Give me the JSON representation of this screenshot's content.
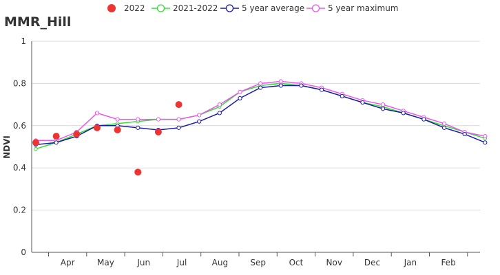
{
  "chart_data": {
    "type": "line",
    "title": "MMR_Hill",
    "ylabel": "NDVI",
    "xlabel": "",
    "ylim": [
      0,
      1
    ],
    "yticks": [
      "0",
      "0.2",
      "0.4",
      "0.6",
      "0.8",
      "1"
    ],
    "month_labels": [
      "Apr",
      "May",
      "Jun",
      "Jul",
      "Aug",
      "Sep",
      "Oct",
      "Nov",
      "Dec",
      "Jan",
      "Feb"
    ],
    "grid": "horizontal",
    "legend_position": "top",
    "series": [
      {
        "name": "2022",
        "style": "dots",
        "color": "#ee3333",
        "values": [
          0.52,
          0.55,
          0.56,
          0.59,
          0.58,
          0.38,
          0.57,
          0.7
        ]
      },
      {
        "name": "2021-2022",
        "style": "line",
        "color": "#33dd33",
        "values": [
          0.49,
          0.52,
          0.56,
          0.6,
          0.61,
          0.62,
          0.63,
          0.63,
          0.65,
          0.69,
          0.76,
          0.79,
          0.8,
          0.79,
          0.77,
          0.74,
          0.71,
          0.69,
          0.66,
          0.63,
          0.6,
          0.57,
          0.54
        ]
      },
      {
        "name": "5 year average",
        "style": "line",
        "color": "#1a1aaa",
        "values": [
          0.51,
          0.52,
          0.55,
          0.6,
          0.6,
          0.59,
          0.58,
          0.59,
          0.62,
          0.66,
          0.73,
          0.78,
          0.79,
          0.79,
          0.77,
          0.74,
          0.71,
          0.68,
          0.66,
          0.63,
          0.59,
          0.56,
          0.52
        ]
      },
      {
        "name": "5 year maximum",
        "style": "line",
        "color": "#ee55ee",
        "values": [
          0.53,
          0.53,
          0.57,
          0.66,
          0.63,
          0.63,
          0.63,
          0.63,
          0.65,
          0.7,
          0.76,
          0.8,
          0.81,
          0.8,
          0.78,
          0.75,
          0.72,
          0.7,
          0.67,
          0.64,
          0.61,
          0.57,
          0.55
        ]
      }
    ]
  }
}
